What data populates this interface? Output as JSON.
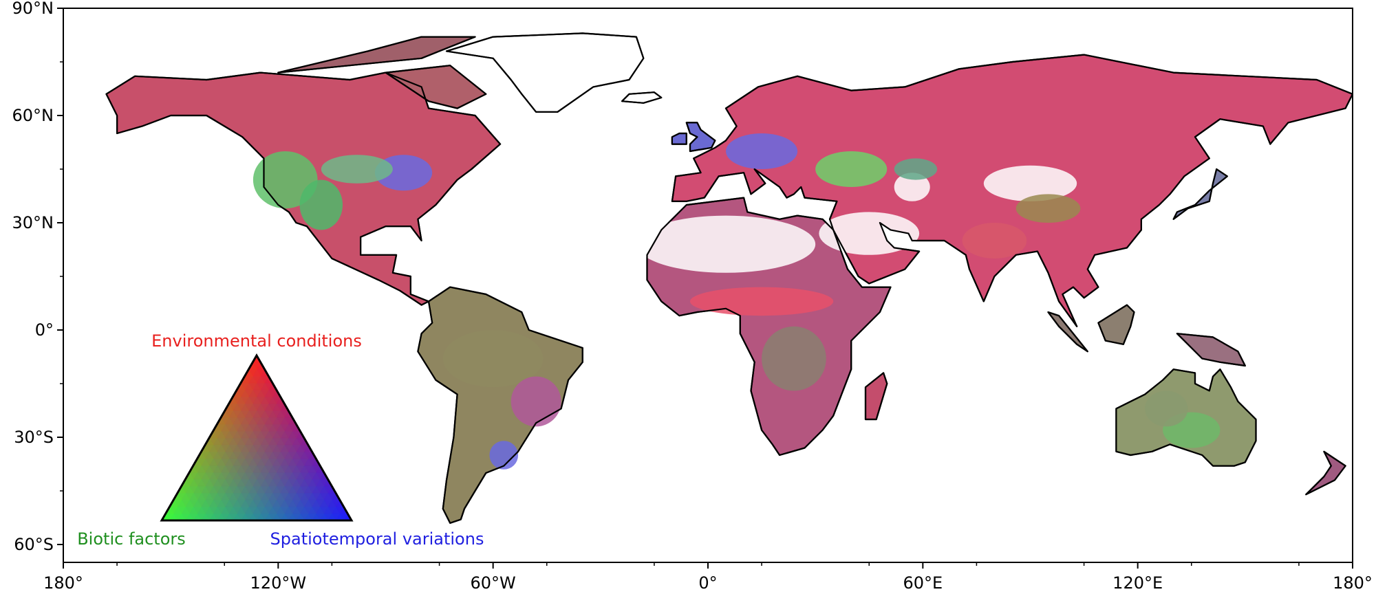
{
  "map": {
    "projection": "plate-carree",
    "lon_range": [
      -180,
      180
    ],
    "lat_range": [
      -65,
      90
    ],
    "coastline_color": "#000000",
    "land_fill_palette": [
      "#e83a6a",
      "#9a8866",
      "#5fd06a",
      "#6a6adf",
      "#b74d9a",
      "#d06a5a"
    ],
    "x_ticks": [
      {
        "value": -180,
        "label": "180°"
      },
      {
        "value": -120,
        "label": "120°W"
      },
      {
        "value": -60,
        "label": "60°W"
      },
      {
        "value": 0,
        "label": "0°"
      },
      {
        "value": 60,
        "label": "60°E"
      },
      {
        "value": 120,
        "label": "120°E"
      },
      {
        "value": 180,
        "label": "180°"
      }
    ],
    "y_ticks": [
      {
        "value": 90,
        "label": "90°N"
      },
      {
        "value": 60,
        "label": "60°N"
      },
      {
        "value": 30,
        "label": "30°N"
      },
      {
        "value": 0,
        "label": "0°"
      },
      {
        "value": -30,
        "label": "30°S"
      },
      {
        "value": -60,
        "label": "60°S"
      }
    ]
  },
  "legend": {
    "type": "ternary-triangle",
    "top_label": "Environmental conditions",
    "left_label": "Biotic factors",
    "right_label": "Spatiotemporal variations",
    "top_color": "#ff2020",
    "left_color": "#3aff3a",
    "right_color": "#1a1aff",
    "top_text_color": "#e8201e",
    "left_text_color": "#1f8f1f",
    "right_text_color": "#1f1fe0"
  }
}
